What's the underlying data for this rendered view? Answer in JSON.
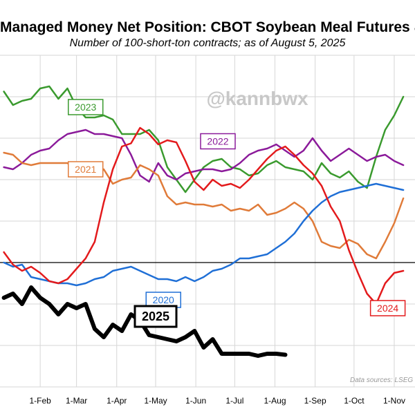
{
  "chart_data": {
    "type": "line",
    "title": "Managed Money Net Position: CBOT Soybean Meal Futures & Options",
    "subtitle": "Number of 100-short-ton contracts; as of August 5, 2025",
    "watermark": "@kannbwx",
    "source": "Data sources: LSEG W",
    "x_tick_labels": [
      "1-Feb",
      "1-Mar",
      "1-Apr",
      "1-May",
      "1-Jun",
      "1-Jul",
      "1-Aug",
      "1-Sep",
      "1-Oct",
      "1-Nov"
    ],
    "x_unit": "days since January 1",
    "y_unit": "thousand contracts",
    "zero_line": 0,
    "grid": true,
    "series": [
      {
        "name": "2023",
        "color": "#3a9a2e",
        "width": 2.5,
        "x": [
          3,
          10,
          17,
          24,
          31,
          38,
          45,
          52,
          59,
          66,
          73,
          80,
          87,
          94,
          101,
          108,
          115,
          122,
          129,
          136,
          143,
          150,
          157,
          164,
          171,
          178,
          185,
          192,
          199,
          206,
          213,
          220,
          227,
          234,
          241,
          248,
          255,
          262,
          269,
          276,
          283,
          290,
          297,
          304,
          311
        ],
        "y": [
          165,
          152,
          156,
          158,
          168,
          170,
          158,
          168,
          150,
          140,
          140,
          142,
          138,
          124,
          124,
          124,
          128,
          118,
          92,
          80,
          68,
          80,
          92,
          98,
          100,
          92,
          90,
          84,
          86,
          94,
          98,
          92,
          90,
          88,
          80,
          96,
          86,
          82,
          88,
          78,
          72,
          102,
          128,
          142,
          160
        ]
      },
      {
        "name": "2022",
        "color": "#8b1a9a",
        "width": 2.5,
        "x": [
          3,
          10,
          17,
          24,
          31,
          38,
          45,
          52,
          59,
          66,
          73,
          80,
          87,
          94,
          101,
          108,
          115,
          122,
          129,
          136,
          143,
          150,
          157,
          164,
          171,
          178,
          185,
          192,
          199,
          206,
          213,
          220,
          227,
          234,
          241,
          248,
          255,
          262,
          269,
          276,
          283,
          290,
          297,
          304,
          311
        ],
        "y": [
          92,
          90,
          96,
          104,
          108,
          110,
          118,
          124,
          126,
          128,
          124,
          124,
          122,
          120,
          104,
          84,
          78,
          96,
          84,
          80,
          86,
          88,
          90,
          90,
          88,
          90,
          96,
          104,
          108,
          110,
          114,
          108,
          102,
          108,
          120,
          108,
          98,
          104,
          110,
          104,
          98,
          102,
          104,
          98,
          94
        ]
      },
      {
        "name": "2021",
        "color": "#e07b39",
        "width": 2.5,
        "x": [
          3,
          10,
          17,
          24,
          31,
          38,
          45,
          52,
          59,
          66,
          73,
          80,
          87,
          94,
          101,
          108,
          115,
          122,
          129,
          136,
          143,
          150,
          157,
          164,
          171,
          178,
          185,
          192,
          199,
          206,
          213,
          220,
          227,
          234,
          241,
          248,
          255,
          262,
          269,
          276,
          283,
          290,
          297,
          304,
          311
        ],
        "y": [
          106,
          104,
          96,
          94,
          96,
          96,
          96,
          96,
          88,
          86,
          86,
          90,
          76,
          80,
          82,
          94,
          90,
          84,
          64,
          56,
          58,
          56,
          56,
          54,
          56,
          50,
          52,
          50,
          56,
          46,
          48,
          52,
          58,
          52,
          40,
          20,
          16,
          14,
          22,
          18,
          8,
          4,
          20,
          38,
          62
        ]
      },
      {
        "name": "2020",
        "color": "#1f6fd6",
        "width": 2.5,
        "x": [
          3,
          10,
          17,
          24,
          31,
          38,
          45,
          52,
          59,
          66,
          73,
          80,
          87,
          94,
          101,
          108,
          115,
          122,
          129,
          136,
          143,
          150,
          157,
          164,
          171,
          178,
          185,
          192,
          199,
          206,
          213,
          220,
          227,
          234,
          241,
          248,
          255,
          262,
          269,
          276,
          283,
          290,
          297,
          304,
          311
        ],
        "y": [
          0,
          -4,
          -2,
          -14,
          -16,
          -18,
          -20,
          -20,
          -22,
          -20,
          -16,
          -14,
          -8,
          -6,
          -4,
          -8,
          -12,
          -16,
          -16,
          -18,
          -14,
          -18,
          -14,
          -8,
          -6,
          -2,
          4,
          4,
          6,
          8,
          14,
          20,
          28,
          40,
          50,
          58,
          64,
          68,
          70,
          72,
          74,
          76,
          74,
          72,
          70
        ]
      },
      {
        "name": "2024",
        "color": "#e31a1c",
        "width": 2.5,
        "x": [
          3,
          10,
          17,
          24,
          31,
          38,
          45,
          52,
          59,
          66,
          73,
          80,
          87,
          94,
          101,
          108,
          115,
          122,
          129,
          136,
          143,
          150,
          157,
          164,
          171,
          178,
          185,
          192,
          199,
          206,
          213,
          220,
          227,
          234,
          241,
          248,
          255,
          262,
          269,
          276,
          283,
          290,
          297,
          304,
          311
        ],
        "y": [
          10,
          -2,
          -8,
          -4,
          -10,
          -18,
          -20,
          -16,
          -6,
          4,
          20,
          58,
          90,
          112,
          115,
          130,
          124,
          114,
          118,
          116,
          98,
          78,
          70,
          80,
          74,
          76,
          72,
          80,
          90,
          100,
          108,
          112,
          104,
          94,
          86,
          74,
          54,
          40,
          12,
          -10,
          -30,
          -40,
          -20,
          -10,
          -8
        ]
      },
      {
        "name": "2025",
        "color": "#000000",
        "width": 6,
        "x": [
          3,
          10,
          17,
          24,
          31,
          38,
          45,
          52,
          59,
          66,
          73,
          80,
          87,
          94,
          101,
          108,
          115,
          122,
          129,
          136,
          143,
          150,
          157,
          164,
          171,
          178,
          185,
          192,
          199,
          206,
          213,
          220
        ],
        "y": [
          -34,
          -30,
          -40,
          -24,
          -34,
          -40,
          -50,
          -40,
          -44,
          -40,
          -64,
          -72,
          -60,
          -66,
          -50,
          -56,
          -70,
          -72,
          -74,
          -76,
          -72,
          -66,
          -82,
          -74,
          -88,
          -88,
          -88,
          -88,
          -90,
          -88,
          -88,
          -89
        ]
      }
    ],
    "labels": [
      {
        "text": "2023",
        "series": "2023",
        "x": 66,
        "y": 150
      },
      {
        "text": "2022",
        "series": "2022",
        "x": 168,
        "y": 117
      },
      {
        "text": "2021",
        "series": "2021",
        "x": 66,
        "y": 90
      },
      {
        "text": "2020",
        "series": "2020",
        "x": 126,
        "y": -36
      },
      {
        "text": "2024",
        "series": "2024",
        "x": 299,
        "y": -44
      },
      {
        "text": "2025",
        "series": "2025",
        "x": 120,
        "y": -52
      }
    ],
    "xlim": [
      0,
      320
    ],
    "ylim": [
      -120,
      200
    ]
  }
}
